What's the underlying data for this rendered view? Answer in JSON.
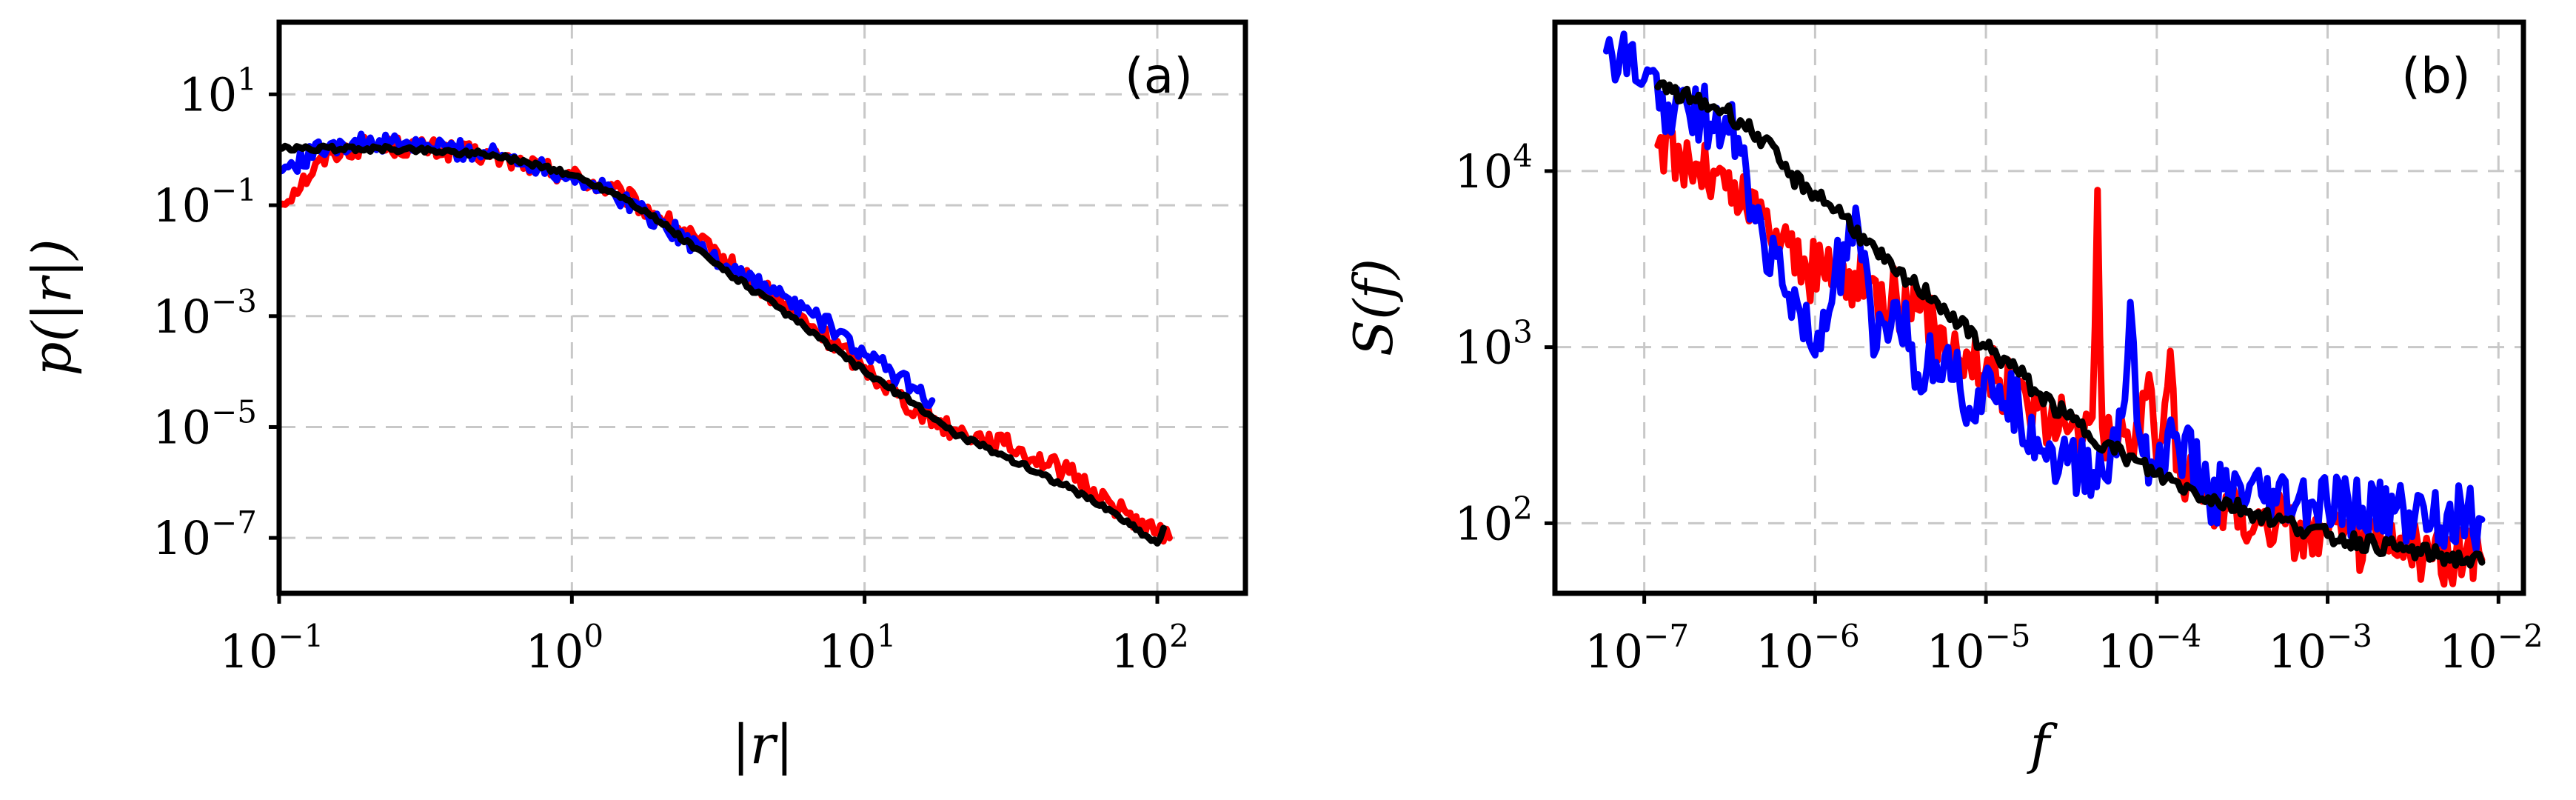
{
  "chart_data": [
    {
      "type": "line",
      "panel_label": "(a)",
      "xlabel": "|r|",
      "ylabel": "p(|r|)",
      "xscale": "log",
      "yscale": "log",
      "xlim": [
        0.1,
        200
      ],
      "ylim": [
        1e-08,
        200
      ],
      "grid": true,
      "x_ticks": [
        {
          "base": "10",
          "exp": "−1",
          "value": 0.1
        },
        {
          "base": "10",
          "exp": "0",
          "value": 1
        },
        {
          "base": "10",
          "exp": "1",
          "value": 10
        },
        {
          "base": "10",
          "exp": "2",
          "value": 100
        }
      ],
      "y_ticks": [
        {
          "base": "10",
          "exp": "1",
          "value": 10
        },
        {
          "base": "10",
          "exp": "−1",
          "value": 0.1
        },
        {
          "base": "10",
          "exp": "−3",
          "value": 0.001
        },
        {
          "base": "10",
          "exp": "−5",
          "value": 1e-05
        },
        {
          "base": "10",
          "exp": "−7",
          "value": 1e-07
        }
      ],
      "series": [
        {
          "name": "red",
          "color": "#ff0000",
          "x_range": [
            0.1,
            110
          ],
          "points": [
            [
              0.1,
              0.1
            ],
            [
              0.15,
              0.9
            ],
            [
              0.2,
              1.2
            ],
            [
              0.3,
              1.1
            ],
            [
              0.5,
              0.8
            ],
            [
              0.7,
              0.55
            ],
            [
              1,
              0.35
            ],
            [
              1.5,
              0.15
            ],
            [
              2,
              0.06
            ],
            [
              3,
              0.015
            ],
            [
              5,
              0.002
            ],
            [
              7,
              0.0005
            ],
            [
              10,
              0.00012
            ],
            [
              15,
              2e-05
            ],
            [
              20,
              9e-06
            ],
            [
              30,
              5e-06
            ],
            [
              50,
              1.5e-06
            ],
            [
              70,
              4e-07
            ],
            [
              100,
              1.2e-07
            ],
            [
              110,
              1e-07
            ]
          ]
        },
        {
          "name": "blue",
          "color": "#0000ff",
          "x_range": [
            0.1,
            17
          ],
          "points": [
            [
              0.1,
              0.4
            ],
            [
              0.15,
              1.3
            ],
            [
              0.2,
              1.3
            ],
            [
              0.3,
              1.2
            ],
            [
              0.5,
              0.9
            ],
            [
              0.7,
              0.6
            ],
            [
              1,
              0.35
            ],
            [
              1.5,
              0.13
            ],
            [
              2,
              0.05
            ],
            [
              3,
              0.012
            ],
            [
              5,
              0.0025
            ],
            [
              7,
              0.0009
            ],
            [
              10,
              0.0002
            ],
            [
              13,
              8e-05
            ],
            [
              17,
              3e-05
            ]
          ]
        },
        {
          "name": "black",
          "color": "#000000",
          "x_range": [
            0.1,
            105
          ],
          "points": [
            [
              0.1,
              1.05
            ],
            [
              0.2,
              1.05
            ],
            [
              0.3,
              1.0
            ],
            [
              0.5,
              0.85
            ],
            [
              0.7,
              0.6
            ],
            [
              1,
              0.35
            ],
            [
              1.5,
              0.14
            ],
            [
              2,
              0.05
            ],
            [
              3,
              0.01
            ],
            [
              5,
              0.0015
            ],
            [
              7,
              0.0004
            ],
            [
              10,
              0.0001
            ],
            [
              15,
              2.5e-05
            ],
            [
              20,
              8e-06
            ],
            [
              30,
              3e-06
            ],
            [
              50,
              8e-07
            ],
            [
              70,
              3e-07
            ],
            [
              100,
              8e-08
            ],
            [
              105,
              1.5e-07
            ]
          ]
        }
      ]
    },
    {
      "type": "line",
      "panel_label": "(b)",
      "xlabel": "f",
      "ylabel": "S(f)",
      "xscale": "log",
      "yscale": "log",
      "xlim": [
        3e-08,
        0.014
      ],
      "ylim": [
        40,
        70000
      ],
      "grid": true,
      "x_ticks": [
        {
          "base": "10",
          "exp": "−7",
          "value": 1e-07
        },
        {
          "base": "10",
          "exp": "−6",
          "value": 1e-06
        },
        {
          "base": "10",
          "exp": "−5",
          "value": 1e-05
        },
        {
          "base": "10",
          "exp": "−4",
          "value": 0.0001
        },
        {
          "base": "10",
          "exp": "−3",
          "value": 0.001
        },
        {
          "base": "10",
          "exp": "−2",
          "value": 0.01
        }
      ],
      "y_ticks": [
        {
          "base": "10",
          "exp": "4",
          "value": 10000
        },
        {
          "base": "10",
          "exp": "3",
          "value": 1000
        },
        {
          "base": "10",
          "exp": "2",
          "value": 100
        }
      ],
      "series": [
        {
          "name": "red",
          "color": "#ff0000",
          "points": [
            [
              1.2e-07,
              14000
            ],
            [
              2e-07,
              11000
            ],
            [
              3e-07,
              8000
            ],
            [
              5e-07,
              5500
            ],
            [
              7e-07,
              3800
            ],
            [
              9e-07,
              2700
            ],
            [
              1.3e-06,
              2600
            ],
            [
              2e-06,
              2300
            ],
            [
              3e-06,
              1900
            ],
            [
              5e-06,
              1300
            ],
            [
              8e-06,
              900
            ],
            [
              1.2e-05,
              650
            ],
            [
              2e-05,
              450
            ],
            [
              3e-05,
              330
            ],
            [
              4.2e-05,
              400
            ],
            [
              4.5e-05,
              7800
            ],
            [
              4.8e-05,
              350
            ],
            [
              7e-05,
              250
            ],
            [
              9e-05,
              700
            ],
            [
              0.0001,
              220
            ],
            [
              0.00012,
              950
            ],
            [
              0.00013,
              200
            ],
            [
              0.0002,
              140
            ],
            [
              0.0005,
              100
            ],
            [
              0.001,
              85
            ],
            [
              0.003,
              70
            ],
            [
              0.008,
              62
            ]
          ]
        },
        {
          "name": "blue",
          "color": "#0000ff",
          "points": [
            [
              6e-08,
              48000
            ],
            [
              1e-07,
              33000
            ],
            [
              1.5e-07,
              22000
            ],
            [
              3e-07,
              20000
            ],
            [
              4e-07,
              9000
            ],
            [
              5e-07,
              4000
            ],
            [
              7e-07,
              2000
            ],
            [
              1e-06,
              900
            ],
            [
              1.3e-06,
              2500
            ],
            [
              1.8e-06,
              4500
            ],
            [
              2.2e-06,
              900
            ],
            [
              3e-06,
              1800
            ],
            [
              4e-06,
              700
            ],
            [
              6e-06,
              1000
            ],
            [
              8e-06,
              450
            ],
            [
              1.2e-05,
              600
            ],
            [
              2e-05,
              300
            ],
            [
              3e-05,
              220
            ],
            [
              5e-05,
              180
            ],
            [
              6.5e-05,
              500
            ],
            [
              7e-05,
              1800
            ],
            [
              8e-05,
              300
            ],
            [
              0.0001,
              200
            ],
            [
              0.00013,
              320
            ],
            [
              0.0002,
              150
            ],
            [
              0.0005,
              130
            ],
            [
              0.001,
              125
            ],
            [
              0.003,
              115
            ],
            [
              0.008,
              105
            ]
          ]
        },
        {
          "name": "black",
          "color": "#000000",
          "points": [
            [
              1.2e-07,
              30000
            ],
            [
              2e-07,
              25000
            ],
            [
              3e-07,
              22000
            ],
            [
              5e-07,
              15000
            ],
            [
              7e-07,
              9500
            ],
            [
              1e-06,
              7500
            ],
            [
              1.5e-06,
              5500
            ],
            [
              2e-06,
              3900
            ],
            [
              3e-06,
              2600
            ],
            [
              5e-06,
              1900
            ],
            [
              7e-06,
              1350
            ],
            [
              1e-05,
              1000
            ],
            [
              1.5e-05,
              750
            ],
            [
              2e-05,
              550
            ],
            [
              3e-05,
              400
            ],
            [
              5e-05,
              280
            ],
            [
              0.0001,
              190
            ],
            [
              0.0002,
              140
            ],
            [
              0.0005,
              105
            ],
            [
              0.001,
              85
            ],
            [
              0.003,
              70
            ],
            [
              0.008,
              60
            ]
          ]
        }
      ]
    }
  ]
}
